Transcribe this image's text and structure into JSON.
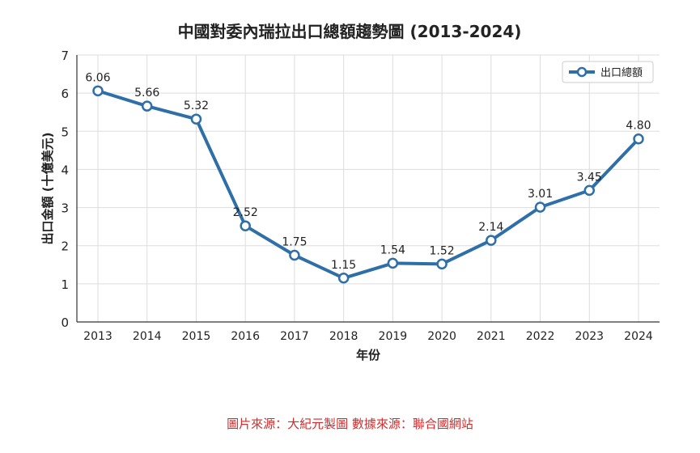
{
  "chart_data": {
    "type": "line",
    "title": "中國對委內瑞拉出口總額趨勢圖 (2013-2024)",
    "xlabel": "年份",
    "ylabel": "出口金額 (十億美元)",
    "categories": [
      "2013",
      "2014",
      "2015",
      "2016",
      "2017",
      "2018",
      "2019",
      "2020",
      "2021",
      "2022",
      "2023",
      "2024"
    ],
    "series": [
      {
        "name": "出口總額",
        "values": [
          6.06,
          5.66,
          5.32,
          2.52,
          1.75,
          1.15,
          1.54,
          1.52,
          2.14,
          3.01,
          3.45,
          4.8
        ],
        "labels": [
          "6.06",
          "5.66",
          "5.32",
          "2.52",
          "1.75",
          "1.15",
          "1.54",
          "1.52",
          "2.14",
          "3.01",
          "3.45",
          "4.80"
        ],
        "color": "#2f6fa8"
      }
    ],
    "ylim": [
      0,
      7
    ],
    "yticks": [
      "0",
      "1",
      "2",
      "3",
      "4",
      "5",
      "6",
      "7"
    ],
    "grid": true,
    "legend_position": "top-right"
  },
  "caption": "圖片來源：大紀元製圖 數據來源：聯合國網站"
}
